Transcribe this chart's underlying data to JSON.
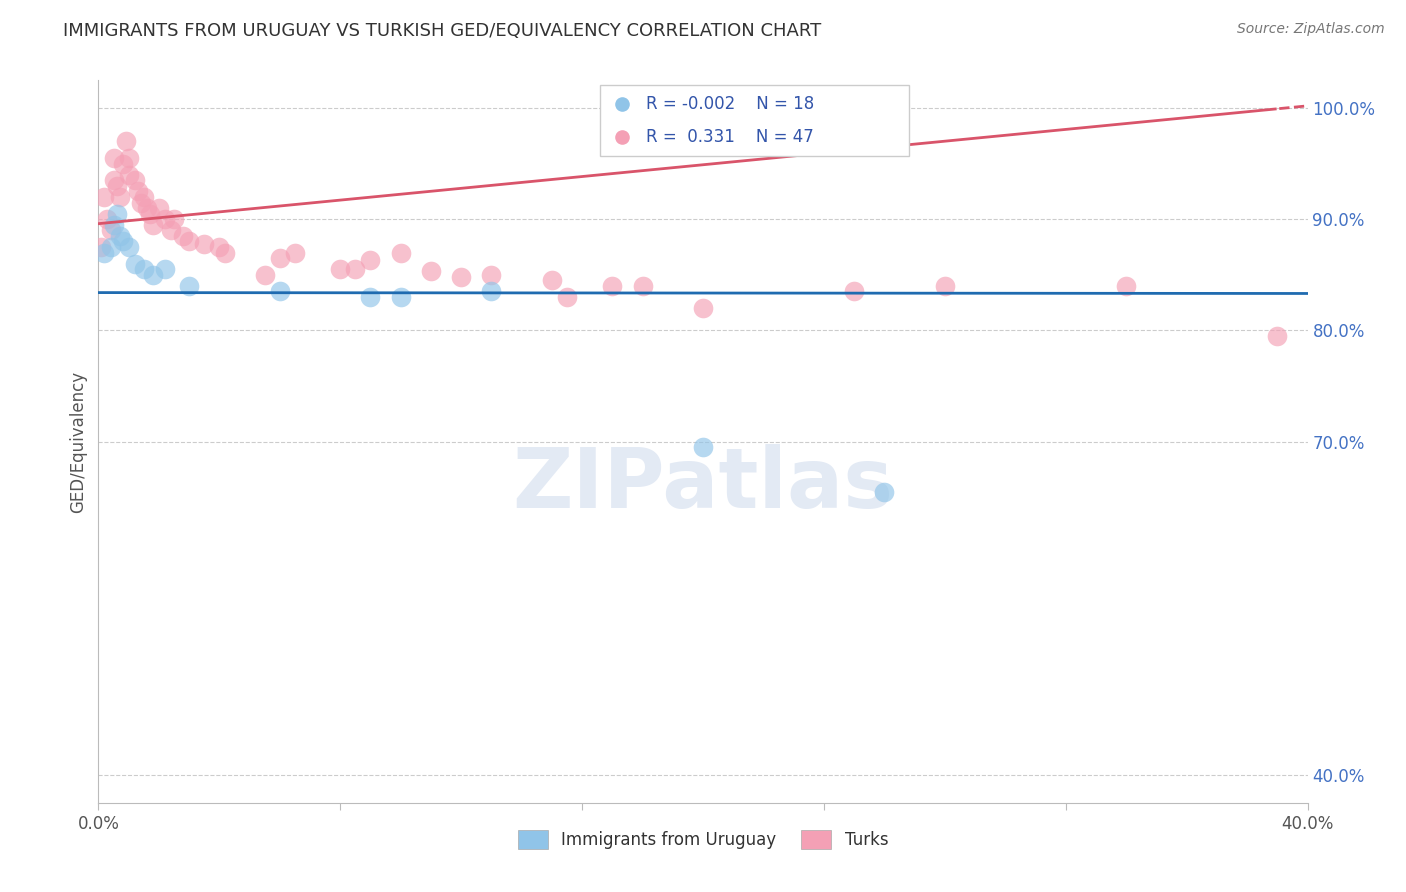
{
  "title": "IMMIGRANTS FROM URUGUAY VS TURKISH GED/EQUIVALENCY CORRELATION CHART",
  "source": "Source: ZipAtlas.com",
  "ylabel": "GED/Equivalency",
  "ytick_labels": [
    "100.0%",
    "90.0%",
    "80.0%",
    "70.0%",
    "40.0%"
  ],
  "ytick_values": [
    1.0,
    0.9,
    0.8,
    0.7,
    0.4
  ],
  "xlim": [
    0.0,
    0.4
  ],
  "ylim": [
    0.375,
    1.025
  ],
  "watermark": "ZIPatlas",
  "legend_r_blue": "-0.002",
  "legend_n_blue": "18",
  "legend_r_pink": "0.331",
  "legend_n_pink": "47",
  "blue_scatter_x": [
    0.002,
    0.004,
    0.005,
    0.006,
    0.007,
    0.008,
    0.01,
    0.012,
    0.015,
    0.018,
    0.022,
    0.03,
    0.06,
    0.09,
    0.1,
    0.13,
    0.2,
    0.26
  ],
  "blue_scatter_y": [
    0.87,
    0.875,
    0.895,
    0.905,
    0.885,
    0.88,
    0.875,
    0.86,
    0.855,
    0.85,
    0.855,
    0.84,
    0.835,
    0.83,
    0.83,
    0.835,
    0.695,
    0.655
  ],
  "pink_scatter_x": [
    0.001,
    0.002,
    0.003,
    0.004,
    0.005,
    0.005,
    0.006,
    0.007,
    0.008,
    0.009,
    0.01,
    0.01,
    0.012,
    0.013,
    0.014,
    0.015,
    0.016,
    0.017,
    0.018,
    0.02,
    0.022,
    0.024,
    0.025,
    0.028,
    0.03,
    0.035,
    0.04,
    0.042,
    0.055,
    0.06,
    0.065,
    0.08,
    0.085,
    0.09,
    0.1,
    0.11,
    0.12,
    0.13,
    0.15,
    0.155,
    0.17,
    0.18,
    0.2,
    0.25,
    0.28,
    0.34,
    0.39
  ],
  "pink_scatter_y": [
    0.875,
    0.92,
    0.9,
    0.89,
    0.955,
    0.935,
    0.93,
    0.92,
    0.95,
    0.97,
    0.955,
    0.94,
    0.935,
    0.925,
    0.915,
    0.92,
    0.91,
    0.905,
    0.895,
    0.91,
    0.9,
    0.89,
    0.9,
    0.885,
    0.88,
    0.878,
    0.875,
    0.87,
    0.85,
    0.865,
    0.87,
    0.855,
    0.855,
    0.863,
    0.87,
    0.853,
    0.848,
    0.85,
    0.845,
    0.83,
    0.84,
    0.84,
    0.82,
    0.835,
    0.84,
    0.84,
    0.795
  ],
  "blue_line_intercept": 0.834,
  "blue_line_slope": -0.002,
  "pink_line_intercept": 0.896,
  "pink_line_slope": 0.265,
  "blue_color": "#90c4e8",
  "pink_color": "#f4a0b5",
  "blue_line_color": "#1f6bb0",
  "pink_line_color": "#d9546a",
  "grid_color": "#cccccc",
  "right_axis_color": "#4472c4",
  "title_color": "#333333",
  "bg_color": "#ffffff"
}
